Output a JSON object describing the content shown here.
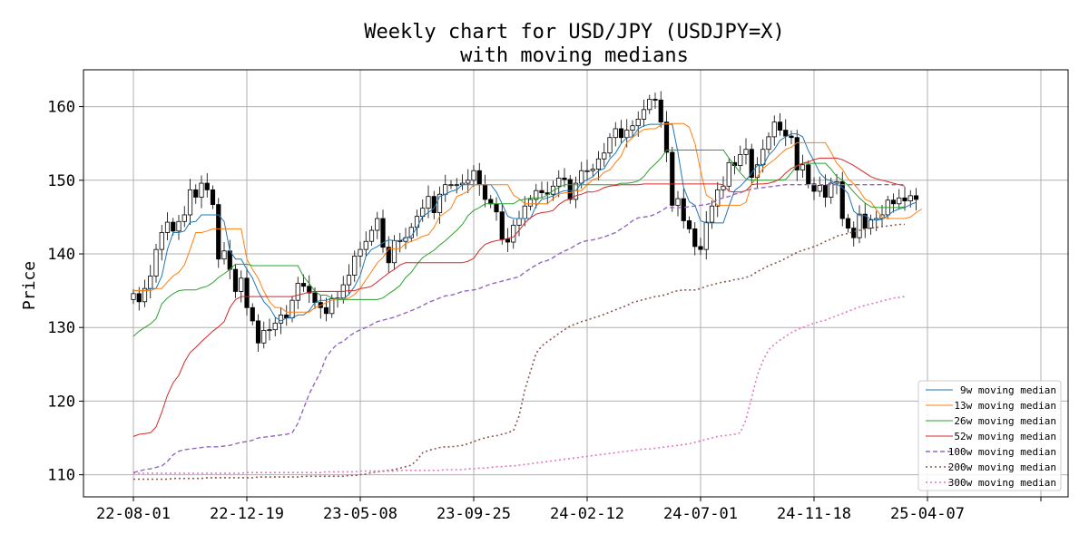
{
  "chart_data": {
    "type": "candlestick",
    "title": "Weekly chart for USD/JPY (USDJPY=X)",
    "subtitle": "with moving medians",
    "ylabel": "Price",
    "xlabel": "",
    "ylim": [
      107,
      165
    ],
    "yticks": [
      110,
      120,
      130,
      140,
      150,
      160
    ],
    "xtick_labels": [
      "22-08-01",
      "22-12-19",
      "23-05-08",
      "23-09-25",
      "24-02-12",
      "24-07-01",
      "24-11-18",
      "25-04-07",
      ""
    ],
    "grid": true,
    "legend_position": "lower right",
    "colors": {
      "up_body": "#ffffff",
      "down_body": "#000000",
      "edge": "#000000",
      "grid": "#b0b0b0",
      "9w": "#1f77b4",
      "13w": "#ff7f0e",
      "26w": "#2ca02c",
      "52w": "#d62728",
      "100w": "#9467bd",
      "200w": "#8c564b",
      "300w": "#e377c2"
    },
    "closes": [
      134.6,
      133.5,
      135.3,
      137.0,
      140.6,
      142.9,
      144.3,
      143.1,
      144.4,
      145.3,
      148.7,
      147.7,
      149.6,
      148.7,
      146.7,
      139.3,
      140.4,
      137.9,
      134.9,
      136.7,
      132.7,
      130.9,
      127.9,
      129.6,
      129.7,
      130.6,
      131.7,
      131.3,
      133.7,
      136.0,
      135.6,
      134.7,
      133.4,
      132.7,
      131.9,
      133.9,
      134.0,
      135.8,
      137.1,
      139.7,
      140.6,
      141.7,
      143.2,
      144.8,
      140.9,
      138.8,
      141.8,
      141.7,
      142.2,
      143.6,
      145.1,
      146.2,
      147.8,
      145.6,
      148.1,
      149.4,
      149.4,
      149.4,
      149.6,
      150.0,
      151.3,
      149.4,
      147.4,
      146.8,
      145.7,
      142.0,
      141.6,
      143.9,
      144.8,
      146.5,
      147.4,
      148.6,
      148.3,
      148.1,
      149.2,
      150.3,
      150.1,
      147.4,
      149.6,
      151.3,
      151.3,
      151.5,
      152.9,
      153.7,
      155.8,
      157.0,
      155.8,
      156.8,
      157.4,
      158.3,
      159.6,
      161.0,
      160.9,
      157.9,
      153.8,
      146.6,
      147.5,
      144.5,
      143.4,
      141.0,
      140.6,
      144.3,
      146.5,
      148.7,
      149.2,
      152.4,
      152.0,
      153.5,
      154.2,
      150.4,
      152.1,
      154.2,
      155.9,
      157.9,
      156.8,
      156.0,
      155.8,
      151.4,
      152.1,
      149.5,
      148.5,
      149.3,
      147.7,
      149.6,
      149.8,
      144.8,
      143.5,
      142.2,
      145.4,
      143.5,
      144.6,
      144.8,
      145.3,
      147.3,
      146.8,
      147.6,
      147.2,
      147.9,
      147.4
    ],
    "series": [
      {
        "name": "9w moving median",
        "values": [
          135.0,
          135.0,
          135.0,
          135.3,
          135.3,
          137.0,
          140.6,
          142.9,
          142.9,
          143.1,
          144.3,
          144.4,
          145.3,
          145.3,
          145.3,
          145.3,
          144.4,
          140.4,
          139.3,
          139.3,
          137.9,
          136.7,
          134.9,
          133.5,
          132.7,
          131.4,
          130.9,
          131.3,
          131.3,
          131.7,
          131.7,
          132.3,
          133.4,
          133.7,
          133.7,
          134.0,
          133.9,
          133.9,
          134.5,
          135.6,
          137.1,
          139.7,
          140.6,
          141.0,
          141.5,
          141.9,
          141.8,
          141.8,
          142.2,
          142.4,
          143.6,
          145.1,
          145.6,
          146.2,
          147.8,
          148.1,
          148.5,
          148.7,
          149.4,
          149.4,
          149.4,
          149.4,
          149.4,
          149.4,
          148.4,
          146.8,
          145.1,
          144.8,
          144.8,
          144.8,
          144.8,
          146.5,
          147.4,
          147.6,
          147.9,
          148.3,
          148.6,
          148.6,
          148.6,
          149.6,
          150.1,
          150.5,
          151.3,
          151.6,
          152.9,
          153.7,
          155.0,
          155.8,
          155.9,
          157.0,
          157.4,
          157.6,
          157.6,
          157.6,
          157.6,
          157.6,
          153.8,
          149.0,
          147.1,
          146.6,
          144.5,
          144.2,
          144.2,
          144.2,
          144.2,
          146.5,
          148.6,
          149.2,
          150.0,
          151.0,
          152.0,
          152.0,
          153.4,
          154.2,
          155.4,
          155.9,
          156.3,
          156.3,
          155.9,
          154.0,
          152.6,
          151.0,
          150.2,
          149.9,
          149.5,
          149.0,
          148.2,
          145.8,
          145.2,
          145.2,
          144.7,
          144.6,
          144.7,
          145.2,
          145.8,
          146.1,
          146.3,
          146.7,
          147.0
        ]
      },
      {
        "name": "13w moving median",
        "values": [
          135.0,
          135.0,
          135.0,
          135.0,
          135.3,
          135.3,
          136.2,
          137.0,
          137.5,
          138.5,
          140.6,
          142.9,
          142.9,
          143.1,
          143.4,
          143.4,
          143.4,
          143.4,
          143.4,
          143.4,
          139.3,
          137.9,
          136.7,
          134.9,
          133.5,
          132.7,
          132.7,
          132.1,
          132.1,
          132.1,
          132.1,
          132.1,
          132.7,
          133.0,
          133.4,
          133.7,
          133.9,
          133.9,
          134.0,
          134.5,
          135.3,
          136.5,
          137.6,
          138.8,
          139.5,
          140.7,
          140.7,
          140.7,
          141.4,
          141.7,
          142.0,
          142.4,
          142.6,
          143.6,
          145.1,
          145.6,
          146.2,
          147.8,
          148.1,
          148.5,
          149.4,
          149.4,
          149.4,
          149.4,
          149.4,
          149.4,
          149.4,
          148.0,
          147.5,
          146.8,
          146.8,
          146.8,
          146.8,
          146.8,
          147.5,
          148.1,
          148.3,
          148.3,
          148.6,
          148.6,
          149.4,
          150.1,
          150.3,
          151.1,
          151.4,
          152.4,
          153.3,
          155.1,
          155.8,
          156.4,
          156.9,
          157.0,
          157.0,
          157.5,
          157.7,
          157.7,
          157.7,
          157.7,
          157.2,
          155.0,
          151.3,
          148.0,
          147.5,
          146.6,
          146.6,
          146.6,
          146.6,
          146.6,
          147.0,
          149.5,
          150.5,
          151.6,
          152.2,
          152.8,
          153.5,
          154.2,
          154.5,
          155.1,
          155.1,
          155.1,
          155.1,
          155.1,
          155.1,
          153.8,
          152.3,
          151.5,
          150.2,
          149.5,
          148.6,
          147.4,
          147.1,
          146.0,
          145.0,
          144.8,
          144.8,
          144.8,
          144.8,
          145.0,
          145.6,
          146.1
        ]
      },
      {
        "name": "26w moving median",
        "values": [
          128.8,
          129.5,
          130.0,
          130.5,
          131.2,
          133.2,
          134.0,
          134.6,
          135.0,
          135.1,
          135.1,
          135.1,
          135.4,
          135.6,
          136.1,
          136.8,
          137.3,
          137.9,
          138.6,
          138.6,
          138.6,
          138.4,
          138.4,
          138.4,
          138.4,
          138.4,
          138.4,
          138.4,
          138.4,
          138.4,
          136.9,
          136.0,
          134.9,
          134.4,
          134.4,
          134.0,
          133.8,
          133.8,
          133.8,
          133.8,
          133.8,
          133.8,
          133.8,
          133.8,
          134.0,
          134.6,
          135.1,
          135.7,
          136.8,
          137.5,
          138.6,
          139.5,
          140.0,
          140.5,
          141.2,
          141.8,
          142.5,
          143.2,
          144.0,
          145.2,
          145.9,
          146.3,
          146.8,
          146.8,
          146.8,
          146.8,
          146.8,
          146.8,
          147.3,
          147.4,
          147.6,
          147.6,
          147.6,
          148.0,
          148.6,
          149.0,
          149.4,
          149.4,
          149.4,
          149.4,
          149.4,
          149.4,
          149.4,
          149.4,
          149.4,
          149.4,
          149.6,
          149.6,
          149.7,
          149.9,
          150.5,
          151.5,
          152.2,
          153.0,
          154.1,
          154.1,
          154.1,
          154.1,
          154.1,
          154.1,
          154.1,
          154.1,
          154.1,
          154.1,
          154.1,
          153.0,
          152.0,
          151.0,
          150.2,
          150.0,
          150.0,
          150.0,
          150.0,
          150.0,
          150.0,
          150.1,
          151.0,
          152.0,
          152.3,
          152.3,
          152.3,
          152.3,
          152.3,
          151.5,
          150.5,
          150.0,
          149.3,
          148.4,
          147.6,
          146.9,
          146.4,
          146.3,
          146.3,
          146.3,
          146.3,
          146.3,
          146.4
        ]
      },
      {
        "name": "52w moving median",
        "values": [
          115.2,
          115.5,
          115.6,
          115.7,
          116.5,
          118.5,
          120.8,
          122.5,
          123.5,
          125.3,
          126.6,
          127.3,
          128.1,
          128.8,
          129.5,
          130.1,
          130.8,
          132.7,
          133.8,
          134.2,
          134.2,
          134.2,
          134.2,
          134.2,
          134.2,
          134.2,
          134.2,
          134.2,
          134.2,
          134.4,
          134.6,
          134.8,
          134.9,
          134.9,
          134.9,
          134.9,
          134.9,
          134.9,
          135.0,
          135.0,
          135.3,
          135.4,
          135.6,
          136.2,
          136.8,
          137.4,
          137.9,
          138.5,
          138.8,
          138.8,
          138.8,
          138.8,
          138.8,
          138.8,
          138.8,
          138.8,
          138.8,
          138.8,
          138.8,
          139.0,
          139.4,
          140.5,
          141.3,
          141.6,
          141.8,
          141.9,
          142.1,
          142.3,
          143.2,
          144.2,
          144.9,
          145.4,
          145.6,
          145.7,
          145.9,
          146.7,
          147.2,
          147.5,
          147.9,
          148.1,
          148.4,
          148.4,
          148.6,
          149.0,
          149.2,
          149.3,
          149.4,
          149.4,
          149.4,
          149.4,
          149.5,
          149.5,
          149.5,
          149.5,
          149.5,
          149.5,
          149.5,
          149.5,
          149.5,
          149.5,
          149.5,
          149.5,
          149.5,
          149.5,
          149.4,
          148.5,
          148.4,
          148.4,
          148.6,
          149.4,
          149.5,
          149.5,
          149.6,
          149.8,
          150.2,
          151.0,
          151.6,
          152.0,
          152.3,
          152.5,
          152.8,
          153.0,
          153.0,
          153.0,
          153.0,
          152.8,
          152.4,
          152.0,
          151.5,
          151.0,
          150.5,
          150.2,
          150.0,
          149.8,
          149.6,
          149.4,
          149.2
        ]
      },
      {
        "name": "100w moving median",
        "values": [
          110.3,
          110.5,
          110.7,
          110.8,
          111.0,
          111.2,
          111.8,
          112.7,
          113.2,
          113.4,
          113.5,
          113.6,
          113.7,
          113.8,
          113.8,
          113.8,
          113.9,
          114.0,
          114.2,
          114.4,
          114.5,
          114.7,
          115.0,
          115.1,
          115.2,
          115.3,
          115.4,
          115.5,
          115.7,
          117.0,
          119.0,
          121.0,
          122.5,
          124.0,
          126.0,
          127.0,
          127.8,
          128.1,
          128.8,
          129.3,
          129.7,
          130.0,
          130.4,
          130.8,
          131.0,
          131.2,
          131.4,
          131.7,
          132.0,
          132.3,
          132.6,
          133.0,
          133.4,
          133.7,
          134.0,
          134.3,
          134.4,
          134.6,
          134.9,
          135.0,
          135.1,
          135.3,
          135.6,
          135.9,
          136.1,
          136.3,
          136.5,
          136.7,
          136.9,
          137.5,
          138.0,
          138.5,
          138.9,
          139.1,
          139.5,
          140.0,
          140.4,
          140.7,
          141.2,
          141.6,
          141.8,
          141.9,
          142.1,
          142.3,
          142.6,
          142.9,
          143.4,
          143.9,
          144.5,
          144.9,
          145.0,
          145.1,
          145.4,
          145.8,
          146.3,
          146.3,
          146.3,
          146.3,
          146.4,
          146.5,
          146.6,
          146.7,
          146.9,
          147.4,
          147.6,
          147.8,
          148.1,
          148.3,
          148.6,
          148.8,
          148.9,
          149.0,
          149.1,
          149.2,
          149.3,
          149.4,
          149.4,
          149.4,
          149.4,
          149.4,
          149.4,
          149.4,
          149.4,
          149.4,
          149.4,
          149.4,
          149.4,
          149.4,
          149.4,
          149.4,
          149.4,
          149.4,
          149.4,
          149.4,
          149.4,
          149.4,
          149.4
        ]
      },
      {
        "name": "200w moving median",
        "values": [
          109.4,
          109.4,
          109.4,
          109.4,
          109.4,
          109.4,
          109.4,
          109.5,
          109.5,
          109.5,
          109.5,
          109.5,
          109.5,
          109.6,
          109.6,
          109.6,
          109.6,
          109.6,
          109.6,
          109.6,
          109.6,
          109.6,
          109.7,
          109.7,
          109.7,
          109.7,
          109.7,
          109.7,
          109.7,
          109.7,
          109.8,
          109.8,
          109.8,
          109.8,
          109.8,
          109.8,
          109.8,
          109.8,
          109.9,
          109.9,
          110.0,
          110.1,
          110.3,
          110.4,
          110.5,
          110.6,
          110.7,
          110.9,
          111.1,
          111.3,
          112.0,
          113.0,
          113.3,
          113.5,
          113.7,
          113.8,
          113.8,
          113.9,
          114.0,
          114.2,
          114.5,
          114.8,
          115.0,
          115.2,
          115.3,
          115.5,
          115.7,
          116.0,
          118.0,
          121.5,
          124.0,
          126.5,
          127.5,
          128.1,
          128.6,
          129.2,
          129.7,
          130.2,
          130.5,
          130.8,
          131.0,
          131.3,
          131.5,
          131.8,
          132.1,
          132.4,
          132.7,
          133.0,
          133.4,
          133.6,
          133.8,
          134.0,
          134.2,
          134.3,
          134.5,
          134.8,
          135.0,
          135.1,
          135.1,
          135.1,
          135.3,
          135.6,
          135.8,
          136.0,
          136.2,
          136.3,
          136.5,
          136.6,
          136.8,
          137.1,
          137.6,
          138.0,
          138.4,
          138.7,
          139.0,
          139.4,
          139.8,
          140.2,
          140.5,
          140.7,
          141.0,
          141.3,
          141.7,
          142.0,
          142.4,
          142.6,
          142.8,
          143.0,
          143.2,
          143.4,
          143.5,
          143.6,
          143.7,
          143.8,
          143.9,
          144.0,
          144.0
        ]
      },
      {
        "name": "300w moving median",
        "values": [
          110.2,
          110.2,
          110.2,
          110.2,
          110.2,
          110.2,
          110.2,
          110.2,
          110.2,
          110.2,
          110.2,
          110.2,
          110.2,
          110.2,
          110.2,
          110.2,
          110.2,
          110.2,
          110.2,
          110.2,
          110.3,
          110.3,
          110.3,
          110.3,
          110.3,
          110.3,
          110.3,
          110.3,
          110.3,
          110.3,
          110.3,
          110.3,
          110.3,
          110.3,
          110.4,
          110.4,
          110.4,
          110.4,
          110.4,
          110.4,
          110.5,
          110.5,
          110.5,
          110.5,
          110.5,
          110.5,
          110.5,
          110.6,
          110.6,
          110.6,
          110.6,
          110.6,
          110.6,
          110.6,
          110.6,
          110.7,
          110.7,
          110.7,
          110.7,
          110.8,
          110.8,
          110.9,
          110.9,
          111.0,
          111.1,
          111.1,
          111.2,
          111.2,
          111.3,
          111.4,
          111.5,
          111.6,
          111.7,
          111.8,
          111.9,
          112.0,
          112.1,
          112.2,
          112.3,
          112.4,
          112.5,
          112.6,
          112.7,
          112.8,
          112.9,
          113.0,
          113.1,
          113.2,
          113.3,
          113.4,
          113.5,
          113.5,
          113.6,
          113.7,
          113.8,
          113.9,
          114.0,
          114.1,
          114.2,
          114.4,
          114.6,
          114.8,
          115.0,
          115.2,
          115.3,
          115.4,
          115.5,
          115.7,
          117.5,
          120.5,
          123.5,
          125.5,
          127.0,
          127.7,
          128.3,
          128.8,
          129.3,
          129.7,
          130.0,
          130.3,
          130.6,
          130.8,
          131.0,
          131.3,
          131.6,
          131.9,
          132.2,
          132.5,
          132.8,
          133.0,
          133.2,
          133.4,
          133.6,
          133.8,
          134.0,
          134.1,
          134.2
        ]
      }
    ]
  }
}
